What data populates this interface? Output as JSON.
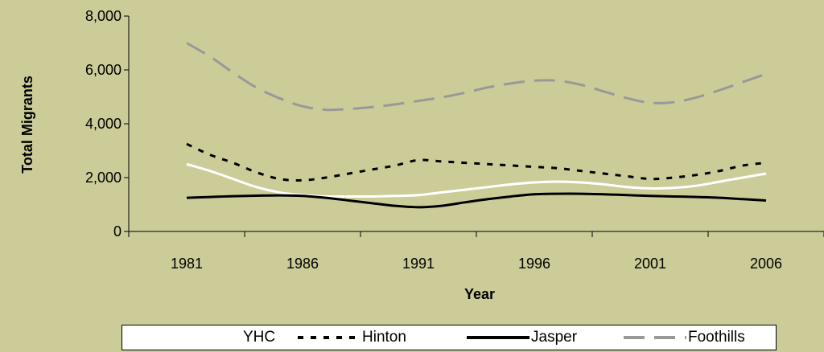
{
  "chart_data": {
    "type": "line",
    "title": "",
    "xlabel": "Year",
    "ylabel": "Total Migrants",
    "x_ticks": [
      "1981",
      "1986",
      "1991",
      "1996",
      "2001",
      "2006"
    ],
    "y_ticks": [
      "0",
      "2,000",
      "4,000",
      "6,000",
      "8,000"
    ],
    "ylim": [
      0,
      8000
    ],
    "xlim": [
      1978.5,
      2008.5
    ],
    "grid": false,
    "legend": "bottom",
    "x": [
      1981,
      1982,
      1983,
      1984,
      1985,
      1986,
      1987,
      1988,
      1989,
      1990,
      1991,
      1992,
      1993,
      1994,
      1995,
      1996,
      1997,
      1998,
      1999,
      2000,
      2001,
      2002,
      2003,
      2004,
      2005,
      2006
    ],
    "series": [
      {
        "name": "YHC",
        "color": "#ffffff",
        "dash": "solid",
        "values": [
          2500,
          2250,
          1950,
          1650,
          1450,
          1350,
          1300,
          1300,
          1300,
          1320,
          1350,
          1450,
          1550,
          1650,
          1750,
          1820,
          1850,
          1820,
          1750,
          1650,
          1600,
          1620,
          1700,
          1850,
          2000,
          2150
        ]
      },
      {
        "name": "Hinton",
        "color": "#000000",
        "dash": "dotted",
        "values": [
          3250,
          2850,
          2550,
          2200,
          1950,
          1900,
          2000,
          2150,
          2300,
          2450,
          2650,
          2600,
          2550,
          2500,
          2450,
          2400,
          2350,
          2250,
          2150,
          2050,
          1950,
          2000,
          2100,
          2250,
          2450,
          2550
        ]
      },
      {
        "name": "Jasper",
        "color": "#000000",
        "dash": "solid",
        "values": [
          1250,
          1280,
          1310,
          1330,
          1340,
          1320,
          1250,
          1150,
          1050,
          950,
          900,
          950,
          1080,
          1200,
          1300,
          1380,
          1400,
          1400,
          1380,
          1350,
          1320,
          1300,
          1280,
          1250,
          1200,
          1150
        ]
      },
      {
        "name": "Foothills",
        "color": "#999999",
        "dash": "longdash",
        "values": [
          7000,
          6500,
          5900,
          5350,
          4950,
          4650,
          4520,
          4550,
          4620,
          4720,
          4850,
          4980,
          5150,
          5350,
          5500,
          5600,
          5600,
          5450,
          5200,
          4950,
          4780,
          4800,
          4980,
          5250,
          5550,
          5850
        ]
      }
    ]
  }
}
